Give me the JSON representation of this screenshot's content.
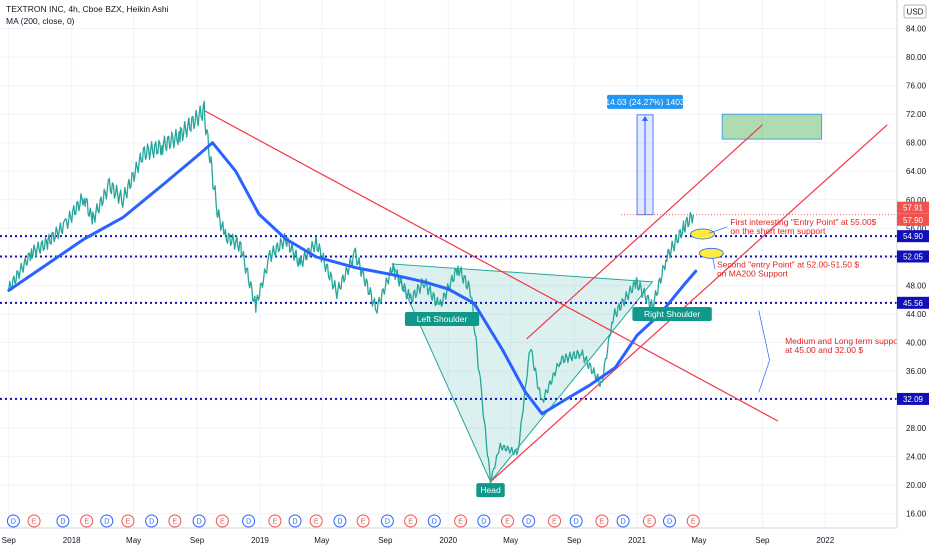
{
  "legend": {
    "title": "TEXTRON INC, 4h, Cboe BZX, Heikin Ashi",
    "indicator": "MA (200, close, 0)"
  },
  "currency": "USD",
  "chart_data": {
    "type": "line",
    "title": "TEXTRON INC, 4h, Cboe BZX, Heikin Ashi",
    "series": [
      {
        "name": "TEXTRON INC",
        "color": "#26a69a",
        "points": [
          [
            "2017-09-01",
            47.5
          ],
          [
            "2017-10-15",
            52.5
          ],
          [
            "2017-11-15",
            54.0
          ],
          [
            "2017-12-20",
            56.5
          ],
          [
            "2018-01-25",
            60.5
          ],
          [
            "2018-02-10",
            57.0
          ],
          [
            "2018-03-15",
            62.0
          ],
          [
            "2018-04-10",
            60.0
          ],
          [
            "2018-05-20",
            66.5
          ],
          [
            "2018-06-25",
            67.5
          ],
          [
            "2018-07-30",
            69.0
          ],
          [
            "2018-09-15",
            72.5
          ],
          [
            "2018-10-10",
            58.5
          ],
          [
            "2018-10-25",
            55.0
          ],
          [
            "2018-11-25",
            53.5
          ],
          [
            "2018-12-24",
            45.0
          ],
          [
            "2019-01-20",
            52.0
          ],
          [
            "2019-02-20",
            54.5
          ],
          [
            "2019-03-20",
            51.0
          ],
          [
            "2019-04-20",
            54.0
          ],
          [
            "2019-05-30",
            47.0
          ],
          [
            "2019-07-05",
            52.5
          ],
          [
            "2019-08-15",
            44.5
          ],
          [
            "2019-09-15",
            50.5
          ],
          [
            "2019-10-20",
            46.0
          ],
          [
            "2019-11-15",
            48.5
          ],
          [
            "2019-12-15",
            45.0
          ],
          [
            "2020-01-20",
            50.5
          ],
          [
            "2020-02-15",
            47.0
          ],
          [
            "2020-03-05",
            33.0
          ],
          [
            "2020-03-23",
            20.5
          ],
          [
            "2020-04-10",
            25.5
          ],
          [
            "2020-05-15",
            24.5
          ],
          [
            "2020-06-08",
            39.5
          ],
          [
            "2020-06-30",
            31.5
          ],
          [
            "2020-08-05",
            37.5
          ],
          [
            "2020-09-15",
            38.5
          ],
          [
            "2020-10-25",
            34.0
          ],
          [
            "2020-11-15",
            43.5
          ],
          [
            "2020-12-31",
            48.5
          ],
          [
            "2021-01-31",
            45.0
          ],
          [
            "2021-02-28",
            52.0
          ],
          [
            "2021-04-01",
            56.0
          ],
          [
            "2021-04-20",
            57.9
          ]
        ]
      },
      {
        "name": "MA (200, close, 0)",
        "color": "#2962ff",
        "points": [
          [
            "2017-09-01",
            47.3
          ],
          [
            "2017-11-15",
            51.0
          ],
          [
            "2018-01-25",
            54.5
          ],
          [
            "2018-04-10",
            57.5
          ],
          [
            "2018-06-25",
            62.0
          ],
          [
            "2018-08-30",
            66.0
          ],
          [
            "2018-10-01",
            68.0
          ],
          [
            "2018-11-15",
            64.0
          ],
          [
            "2018-12-30",
            58.0
          ],
          [
            "2019-02-20",
            54.5
          ],
          [
            "2019-04-20",
            52.0
          ],
          [
            "2019-07-05",
            50.5
          ],
          [
            "2019-09-15",
            49.5
          ],
          [
            "2019-11-15",
            48.5
          ],
          [
            "2020-01-01",
            47.5
          ],
          [
            "2020-02-20",
            45.5
          ],
          [
            "2020-04-15",
            39.0
          ],
          [
            "2020-05-30",
            33.0
          ],
          [
            "2020-07-01",
            30.0
          ],
          [
            "2020-08-15",
            32.0
          ],
          [
            "2020-10-01",
            34.0
          ],
          [
            "2020-11-20",
            36.5
          ],
          [
            "2021-01-01",
            41.0
          ],
          [
            "2021-02-15",
            44.0
          ],
          [
            "2021-04-01",
            48.0
          ],
          [
            "2021-04-25",
            50.0
          ]
        ]
      }
    ],
    "y_axis": {
      "ticks": [
        "16.00",
        "20.00",
        "24.00",
        "28.00",
        "32.00",
        "36.00",
        "40.00",
        "44.00",
        "48.00",
        "52.00",
        "56.00",
        "60.00",
        "64.00",
        "68.00",
        "72.00",
        "76.00",
        "80.00",
        "84.00"
      ],
      "range": [
        14.0,
        88.0
      ],
      "position": "right"
    },
    "x_axis": {
      "range": [
        "2017-08-15",
        "2022-05-20"
      ],
      "ticks": [
        {
          "label": "Sep",
          "date": "2017-09-01"
        },
        {
          "label": "2018",
          "date": "2018-01-01"
        },
        {
          "label": "May",
          "date": "2018-05-01"
        },
        {
          "label": "Sep",
          "date": "2018-09-01"
        },
        {
          "label": "2019",
          "date": "2019-01-01"
        },
        {
          "label": "May",
          "date": "2019-05-01"
        },
        {
          "label": "Sep",
          "date": "2019-09-01"
        },
        {
          "label": "2020",
          "date": "2020-01-01"
        },
        {
          "label": "May",
          "date": "2020-05-01"
        },
        {
          "label": "Sep",
          "date": "2020-09-01"
        },
        {
          "label": "2021",
          "date": "2021-01-01"
        },
        {
          "label": "May",
          "date": "2021-05-01"
        },
        {
          "label": "Sep",
          "date": "2021-09-01"
        },
        {
          "label": "2022",
          "date": "2022-01-01"
        }
      ]
    },
    "horizontal_levels": [
      {
        "value": 54.9,
        "label": "54.90"
      },
      {
        "value": 52.05,
        "label": "52.05"
      },
      {
        "value": 45.56,
        "label": "45.56"
      },
      {
        "value": 32.09,
        "label": "32.09"
      }
    ],
    "current_prices": [
      {
        "value": 57.91,
        "label": "57.91"
      },
      {
        "value": 57.9,
        "label": "57.90"
      }
    ],
    "trendlines": [
      {
        "from": [
          "2018-09-15",
          72.5
        ],
        "to": [
          "2021-10-01",
          29.0
        ]
      },
      {
        "from": [
          "2020-03-23",
          20.5
        ],
        "to": [
          "2022-05-01",
          70.5
        ]
      },
      {
        "from": [
          "2020-06-01",
          40.5
        ],
        "to": [
          "2021-09-01",
          70.5
        ]
      }
    ],
    "pattern_triangle": [
      [
        "2019-09-15",
        51.0
      ],
      [
        "2020-03-23",
        20.5
      ],
      [
        "2021-01-31",
        48.5
      ]
    ],
    "measure_box": {
      "from": [
        "2021-01-01",
        57.9
      ],
      "to": [
        "2021-02-01",
        71.9
      ],
      "label": "14.03 (24.27%) 1403"
    },
    "target_box": {
      "from": [
        "2021-06-15",
        68.5
      ],
      "to": [
        "2021-12-25",
        72.0
      ]
    },
    "ellipses": [
      {
        "center": [
          "2021-05-08",
          55.2
        ]
      },
      {
        "center": [
          "2021-05-25",
          52.5
        ]
      }
    ],
    "labels": [
      {
        "text": "Left Shoulder",
        "at": [
          "2019-12-20",
          43.3
        ]
      },
      {
        "text": "Head",
        "at": [
          "2020-03-23",
          19.3
        ]
      },
      {
        "text": "Right Shoulder",
        "at": [
          "2021-03-10",
          44.0
        ]
      }
    ],
    "annotations": [
      {
        "lines": [
          "First interesting \"Entry Point\" at 55.00$",
          "on the short term support"
        ],
        "at": [
          "2021-07-01",
          56.5
        ]
      },
      {
        "lines": [
          "Second \"entry Point\" at 52.00-51.50 $",
          "on MA200 Support"
        ],
        "at": [
          "2021-06-05",
          50.5
        ]
      },
      {
        "lines": [
          "Medium and Long term support",
          "at 45.00 and 32.00 $"
        ],
        "at": [
          "2021-10-15",
          39.8
        ]
      }
    ],
    "events": [
      {
        "date": "2017-09-10",
        "label": "D"
      },
      {
        "date": "2017-10-20",
        "label": "E"
      },
      {
        "date": "2017-12-15",
        "label": "D"
      },
      {
        "date": "2018-01-30",
        "label": "E"
      },
      {
        "date": "2018-03-10",
        "label": "D"
      },
      {
        "date": "2018-04-20",
        "label": "E"
      },
      {
        "date": "2018-06-05",
        "label": "D"
      },
      {
        "date": "2018-07-20",
        "label": "E"
      },
      {
        "date": "2018-09-05",
        "label": "D"
      },
      {
        "date": "2018-10-20",
        "label": "E"
      },
      {
        "date": "2018-12-10",
        "label": "D"
      },
      {
        "date": "2019-01-30",
        "label": "E"
      },
      {
        "date": "2019-03-10",
        "label": "D"
      },
      {
        "date": "2019-04-20",
        "label": "E"
      },
      {
        "date": "2019-06-05",
        "label": "D"
      },
      {
        "date": "2019-07-20",
        "label": "E"
      },
      {
        "date": "2019-09-05",
        "label": "D"
      },
      {
        "date": "2019-10-20",
        "label": "E"
      },
      {
        "date": "2019-12-05",
        "label": "D"
      },
      {
        "date": "2020-01-25",
        "label": "E"
      },
      {
        "date": "2020-03-10",
        "label": "D"
      },
      {
        "date": "2020-04-25",
        "label": "E"
      },
      {
        "date": "2020-06-05",
        "label": "D"
      },
      {
        "date": "2020-07-25",
        "label": "E"
      },
      {
        "date": "2020-09-05",
        "label": "D"
      },
      {
        "date": "2020-10-25",
        "label": "E"
      },
      {
        "date": "2020-12-05",
        "label": "D"
      },
      {
        "date": "2021-01-25",
        "label": "E"
      },
      {
        "date": "2021-03-05",
        "label": "D"
      },
      {
        "date": "2021-04-20",
        "label": "E"
      }
    ]
  }
}
